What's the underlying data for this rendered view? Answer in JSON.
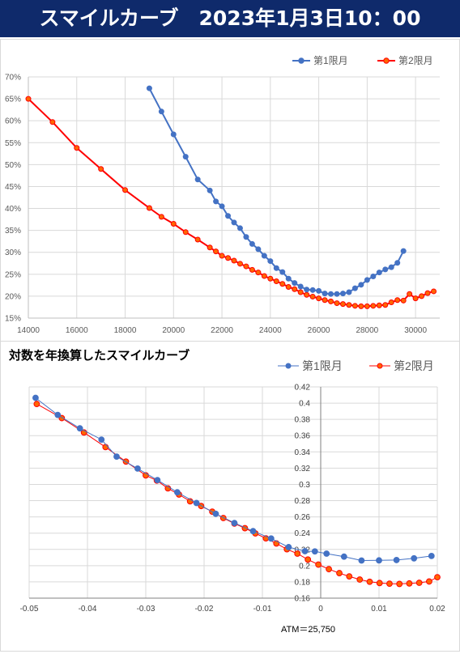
{
  "header": {
    "title": "スマイルカーブ　2023年1月3日10：00",
    "bg": "#0f2a6b"
  },
  "colors": {
    "series1": "#4472c4",
    "series2": "#ff0000",
    "marker2_fill": "#ff6600"
  },
  "chart_data": [
    {
      "type": "line",
      "title": "",
      "xlabel": "",
      "ylabel": "",
      "legend_position": "top-right",
      "grid": true,
      "xlim": [
        14000,
        31000
      ],
      "ylim": [
        0.15,
        0.7
      ],
      "x_ticks": [
        "14000",
        "16000",
        "18000",
        "20000",
        "22000",
        "24000",
        "26000",
        "28000",
        "30000"
      ],
      "x_tick_values": [
        14000,
        16000,
        18000,
        20000,
        22000,
        24000,
        26000,
        28000,
        30000
      ],
      "y_ticks": [
        "15%",
        "20%",
        "25%",
        "30%",
        "35%",
        "40%",
        "45%",
        "50%",
        "55%",
        "60%",
        "65%",
        "70%"
      ],
      "y_tick_values": [
        0.15,
        0.2,
        0.25,
        0.3,
        0.35,
        0.4,
        0.45,
        0.5,
        0.55,
        0.6,
        0.65,
        0.7
      ],
      "series": [
        {
          "name": "第1限月",
          "points": [
            [
              19000,
              0.674
            ],
            [
              19500,
              0.621
            ],
            [
              20000,
              0.569
            ],
            [
              20500,
              0.518
            ],
            [
              21000,
              0.466
            ],
            [
              21500,
              0.441
            ],
            [
              21750,
              0.416
            ],
            [
              22000,
              0.405
            ],
            [
              22250,
              0.383
            ],
            [
              22500,
              0.368
            ],
            [
              22750,
              0.355
            ],
            [
              23000,
              0.335
            ],
            [
              23250,
              0.319
            ],
            [
              23500,
              0.307
            ],
            [
              23750,
              0.292
            ],
            [
              24000,
              0.28
            ],
            [
              24250,
              0.264
            ],
            [
              24500,
              0.255
            ],
            [
              24750,
              0.24
            ],
            [
              25000,
              0.23
            ],
            [
              25250,
              0.222
            ],
            [
              25500,
              0.215
            ],
            [
              25750,
              0.214
            ],
            [
              26000,
              0.212
            ],
            [
              26250,
              0.206
            ],
            [
              26500,
              0.205
            ],
            [
              26750,
              0.205
            ],
            [
              27000,
              0.206
            ],
            [
              27250,
              0.209
            ],
            [
              27500,
              0.218
            ],
            [
              27750,
              0.226
            ],
            [
              28000,
              0.237
            ],
            [
              28250,
              0.245
            ],
            [
              28500,
              0.254
            ],
            [
              28750,
              0.261
            ],
            [
              29000,
              0.266
            ],
            [
              29250,
              0.276
            ],
            [
              29500,
              0.303
            ]
          ]
        },
        {
          "name": "第2限月",
          "points": [
            [
              14000,
              0.65
            ],
            [
              15000,
              0.597
            ],
            [
              16000,
              0.538
            ],
            [
              17000,
              0.49
            ],
            [
              18000,
              0.442
            ],
            [
              19000,
              0.401
            ],
            [
              19500,
              0.381
            ],
            [
              20000,
              0.365
            ],
            [
              20500,
              0.346
            ],
            [
              21000,
              0.329
            ],
            [
              21500,
              0.311
            ],
            [
              21750,
              0.302
            ],
            [
              22000,
              0.292
            ],
            [
              22250,
              0.287
            ],
            [
              22500,
              0.281
            ],
            [
              22750,
              0.274
            ],
            [
              23000,
              0.268
            ],
            [
              23250,
              0.26
            ],
            [
              23500,
              0.254
            ],
            [
              23750,
              0.246
            ],
            [
              24000,
              0.24
            ],
            [
              24250,
              0.234
            ],
            [
              24500,
              0.228
            ],
            [
              24750,
              0.221
            ],
            [
              25000,
              0.216
            ],
            [
              25250,
              0.209
            ],
            [
              25500,
              0.203
            ],
            [
              25750,
              0.199
            ],
            [
              26000,
              0.195
            ],
            [
              26250,
              0.191
            ],
            [
              26500,
              0.188
            ],
            [
              26750,
              0.184
            ],
            [
              27000,
              0.182
            ],
            [
              27250,
              0.18
            ],
            [
              27500,
              0.178
            ],
            [
              27750,
              0.177
            ],
            [
              28000,
              0.177
            ],
            [
              28250,
              0.178
            ],
            [
              28500,
              0.179
            ],
            [
              28750,
              0.18
            ],
            [
              29000,
              0.186
            ],
            [
              29250,
              0.191
            ],
            [
              29500,
              0.19
            ],
            [
              29750,
              0.205
            ],
            [
              30000,
              0.195
            ],
            [
              30250,
              0.2
            ],
            [
              30500,
              0.207
            ],
            [
              30750,
              0.211
            ]
          ]
        }
      ]
    },
    {
      "type": "line",
      "title": "対数を年換算したスマイルカーブ",
      "xlabel": "",
      "ylabel": "",
      "legend_position": "top-right",
      "grid": true,
      "xlim": [
        -0.05,
        0.02
      ],
      "ylim": [
        0.16,
        0.42
      ],
      "x_ticks": [
        "-0.05",
        "-0.04",
        "-0.03",
        "-0.02",
        "-0.01",
        "0",
        "0.01",
        "0.02"
      ],
      "x_tick_values": [
        -0.05,
        -0.04,
        -0.03,
        -0.02,
        -0.01,
        0,
        0.01,
        0.02
      ],
      "y_ticks": [
        "0.16",
        "0.18",
        "0.2",
        "0.22",
        "0.24",
        "0.26",
        "0.28",
        "0.3",
        "0.32",
        "0.34",
        "0.36",
        "0.38",
        "0.4",
        "0.42"
      ],
      "y_tick_values": [
        0.16,
        0.18,
        0.2,
        0.22,
        0.24,
        0.26,
        0.28,
        0.3,
        0.32,
        0.34,
        0.36,
        0.38,
        0.4,
        0.42
      ],
      "annotation": "ATM＝25,750",
      "series": [
        {
          "name": "第1限月",
          "points": [
            [
              -0.0489,
              0.4065
            ],
            [
              -0.0451,
              0.3855
            ],
            [
              -0.0413,
              0.369
            ],
            [
              -0.0376,
              0.3551
            ],
            [
              -0.035,
              0.3342
            ],
            [
              -0.0314,
              0.3195
            ],
            [
              -0.028,
              0.3053
            ],
            [
              -0.0246,
              0.2903
            ],
            [
              -0.0213,
              0.2771
            ],
            [
              -0.018,
              0.2638
            ],
            [
              -0.0148,
              0.2525
            ],
            [
              -0.0116,
              0.2425
            ],
            [
              -0.0085,
              0.2334
            ],
            [
              -0.0055,
              0.2228
            ],
            [
              -0.0027,
              0.2178
            ],
            [
              -0.001,
              0.2175
            ],
            [
              0.001,
              0.2148
            ],
            [
              0.004,
              0.2111
            ],
            [
              0.007,
              0.2063
            ],
            [
              0.01,
              0.2065
            ],
            [
              0.013,
              0.2069
            ],
            [
              0.016,
              0.209
            ],
            [
              0.019,
              0.2119
            ]
          ]
        },
        {
          "name": "第2限月",
          "points": [
            [
              -0.0487,
              0.399
            ],
            [
              -0.0444,
              0.3816
            ],
            [
              -0.0406,
              0.3639
            ],
            [
              -0.0369,
              0.3459
            ],
            [
              -0.0334,
              0.3281
            ],
            [
              -0.03,
              0.3111
            ],
            [
              -0.0281,
              0.3047
            ],
            [
              -0.0262,
              0.2951
            ],
            [
              -0.0243,
              0.2875
            ],
            [
              -0.0224,
              0.2792
            ],
            [
              -0.0205,
              0.2734
            ],
            [
              -0.0186,
              0.2665
            ],
            [
              -0.0167,
              0.2586
            ],
            [
              -0.0148,
              0.2518
            ],
            [
              -0.013,
              0.2461
            ],
            [
              -0.0112,
              0.2397
            ],
            [
              -0.0094,
              0.2336
            ],
            [
              -0.0076,
              0.2273
            ],
            [
              -0.0058,
              0.2202
            ],
            [
              -0.004,
              0.2148
            ],
            [
              -0.0022,
              0.2075
            ],
            [
              -0.0004,
              0.2013
            ],
            [
              0.0014,
              0.1957
            ],
            [
              0.0032,
              0.1908
            ],
            [
              0.0049,
              0.1868
            ],
            [
              0.0067,
              0.1829
            ],
            [
              0.0084,
              0.1802
            ],
            [
              0.0101,
              0.1786
            ],
            [
              0.0118,
              0.1778
            ],
            [
              0.0135,
              0.1775
            ],
            [
              0.0152,
              0.1781
            ],
            [
              0.0169,
              0.1789
            ],
            [
              0.0186,
              0.1805
            ],
            [
              0.02,
              0.1858
            ]
          ]
        }
      ]
    }
  ]
}
